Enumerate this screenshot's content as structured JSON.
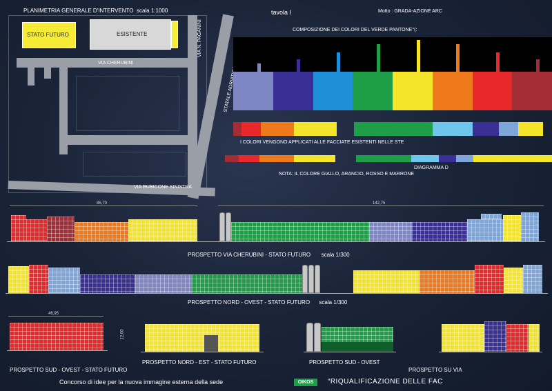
{
  "plan": {
    "title": "PLANIMETRIA GENERALE D'INTERVENTO",
    "scale": "scala 1:1000",
    "legend_future": "STATO FUTURO",
    "legend_existing": "ESISTENTE",
    "street_paganini": "VIA N. PAGANINI",
    "street_cherubini": "VIA CHERUBINI",
    "street_adriatica": "STATALE ADRIATICA",
    "street_rubicone": "VIA RUBICONE SINISTRA"
  },
  "header": {
    "tavola": "tavola I",
    "motto": "Motto : GRADA-AZIONE ARC"
  },
  "palette": {
    "title": "COMPOSIZIONE DEI COLORI DEL VERDE PANTONE°(:",
    "note_applied": "I COLORI VENGONO APPLICATI ALLE FACCIATE ESISTENTI NELLE STE",
    "diagram_label": "DIAGRAMMA D",
    "note_colors": "NOTA: IL COLORE GIALLO, ARANCIO, ROSSO E MARRONE",
    "colors": [
      "#7f86c4",
      "#3a2f95",
      "#1f90d8",
      "#1f9e48",
      "#f5e52a",
      "#ee7a1c",
      "#e8282a",
      "#a32d35"
    ],
    "marker_heights": [
      12,
      18,
      28,
      40,
      46,
      40,
      28,
      18
    ]
  },
  "elevations": {
    "cherubini_label": "PROSPETTO VIA CHERUBINI - STATO FUTURO",
    "cherubini_scale": "scala 1/300",
    "dim_1": "85,70",
    "dim_2": "142,75",
    "nord_ovest_label": "PROSPETTO NORD - OVEST - STATO FUTURO",
    "nord_ovest_scale": "scala 1/300",
    "dim_3": "46,95",
    "dim_4": "12,00",
    "sud_ovest_future": "PROSPETTO  SUD - OVEST - STATO FUTURO",
    "nord_est": "PROSPETTO  NORD - EST - STATO FUTURO",
    "sud_ovest": "PROSPETTO  SUD - OVEST",
    "su_via": "PROSPETTO SU VIA"
  },
  "footer": {
    "contest": "Concorso di idee per la nuova immagine esterna della sede",
    "logo": "OIKOS",
    "project": "“RIQUALIFICAZIONE DELLE FAC"
  }
}
